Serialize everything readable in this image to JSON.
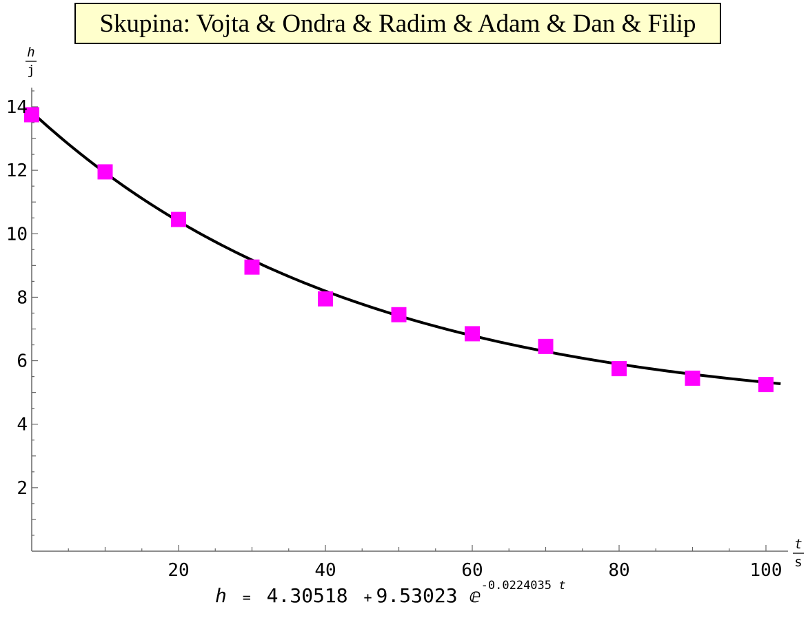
{
  "header": {
    "title": "Skupina: Vojta & Ondra & Radim & Adam & Dan & Filip"
  },
  "formula": {
    "lhs": "h",
    "equals": "=",
    "a": "4.30518",
    "plus": "+",
    "b": "9.53023",
    "e": "ⅇ",
    "exponent_coef": "-0.0224035",
    "exponent_var": "t"
  },
  "chart_data": {
    "type": "scatter",
    "xlabel": {
      "num": "t",
      "den": "s"
    },
    "ylabel": {
      "num": "h",
      "den": "j"
    },
    "xlim": [
      0,
      103
    ],
    "ylim": [
      0,
      14.6
    ],
    "xticks": [
      20,
      40,
      60,
      80,
      100
    ],
    "yticks": [
      2,
      4,
      6,
      8,
      10,
      12,
      14
    ],
    "grid": false,
    "series": [
      {
        "marker": "square",
        "color": "#ff00ff",
        "x": [
          0,
          10,
          20,
          30,
          40,
          50,
          60,
          70,
          80,
          90,
          100
        ],
        "y": [
          13.75,
          11.95,
          10.45,
          8.95,
          7.95,
          7.45,
          6.85,
          6.45,
          5.75,
          5.45,
          5.25
        ]
      }
    ],
    "fit": {
      "type": "exponential",
      "a": 4.30518,
      "b": 9.53023,
      "k": -0.0224035,
      "color": "#000000",
      "x_range": [
        0,
        102
      ]
    }
  }
}
